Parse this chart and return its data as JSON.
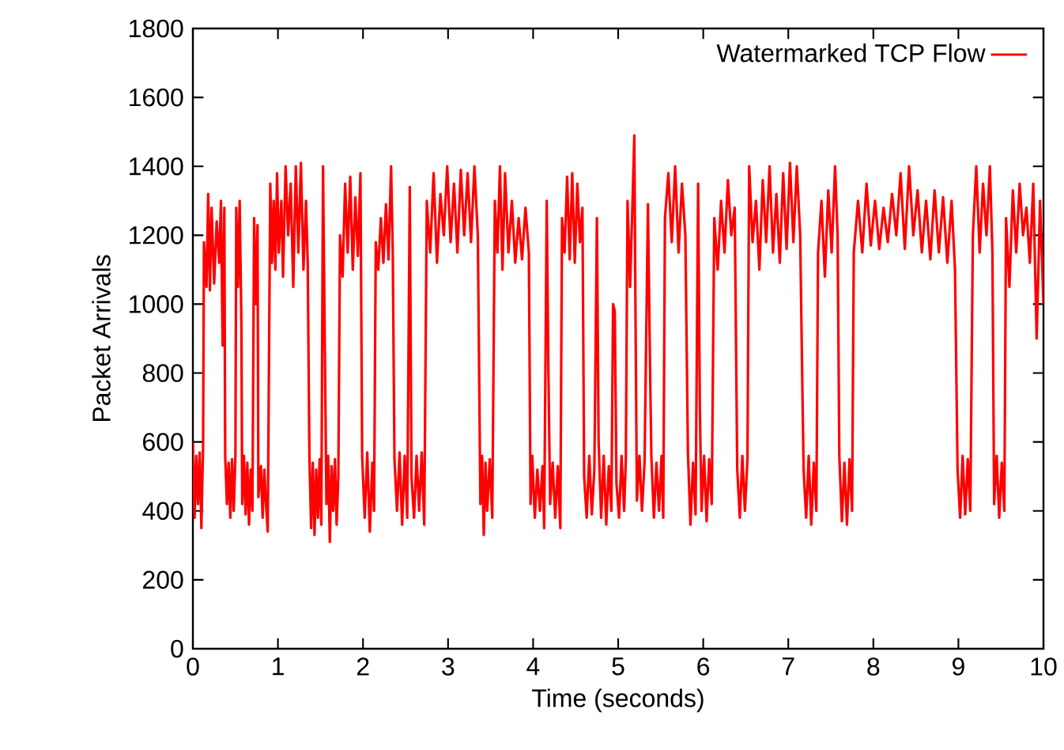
{
  "chart_data": {
    "type": "line",
    "xlabel": "Time (seconds)",
    "ylabel": "Packet Arrivals",
    "xlim": [
      0,
      10
    ],
    "ylim": [
      0,
      1800
    ],
    "xticks": [
      0,
      1,
      2,
      3,
      4,
      5,
      6,
      7,
      8,
      9,
      10
    ],
    "yticks": [
      0,
      200,
      400,
      600,
      800,
      1000,
      1200,
      1400,
      1600,
      1800
    ],
    "legend": "top right",
    "line_style": "solid",
    "x": [
      0,
      0.02,
      0.04,
      0.06,
      0.08,
      0.1,
      0.12,
      0.13,
      0.16,
      0.18,
      0.2,
      0.22,
      0.25,
      0.28,
      0.31,
      0.33,
      0.35,
      0.37,
      0.38,
      0.4,
      0.42,
      0.44,
      0.46,
      0.48,
      0.5,
      0.51,
      0.53,
      0.55,
      0.57,
      0.58,
      0.6,
      0.62,
      0.64,
      0.66,
      0.68,
      0.7,
      0.72,
      0.74,
      0.76,
      0.77,
      0.8,
      0.82,
      0.84,
      0.86,
      0.88,
      0.91,
      0.93,
      0.95,
      0.97,
      0.99,
      1.01,
      1.04,
      1.06,
      1.09,
      1.12,
      1.15,
      1.18,
      1.21,
      1.24,
      1.27,
      1.3,
      1.33,
      1.35,
      1.37,
      1.39,
      1.41,
      1.43,
      1.45,
      1.47,
      1.49,
      1.51,
      1.53,
      1.55,
      1.57,
      1.59,
      1.61,
      1.63,
      1.65,
      1.67,
      1.69,
      1.71,
      1.73,
      1.76,
      1.79,
      1.82,
      1.85,
      1.88,
      1.91,
      1.94,
      1.97,
      1.99,
      2.02,
      2.05,
      2.08,
      2.11,
      2.13,
      2.15,
      2.18,
      2.21,
      2.24,
      2.27,
      2.3,
      2.33,
      2.35,
      2.37,
      2.4,
      2.43,
      2.46,
      2.49,
      2.52,
      2.55,
      2.57,
      2.6,
      2.63,
      2.66,
      2.69,
      2.72,
      2.75,
      2.79,
      2.83,
      2.87,
      2.91,
      2.95,
      2.99,
      3.03,
      3.07,
      3.11,
      3.15,
      3.19,
      3.23,
      3.27,
      3.31,
      3.35,
      3.38,
      3.4,
      3.42,
      3.44,
      3.46,
      3.49,
      3.52,
      3.55,
      3.58,
      3.61,
      3.64,
      3.67,
      3.71,
      3.75,
      3.79,
      3.83,
      3.87,
      3.91,
      3.95,
      3.97,
      3.99,
      4.02,
      4.05,
      4.08,
      4.11,
      4.13,
      4.16,
      4.18,
      4.2,
      4.23,
      4.26,
      4.29,
      4.32,
      4.34,
      4.37,
      4.4,
      4.43,
      4.46,
      4.49,
      4.52,
      4.55,
      4.58,
      4.6,
      4.63,
      4.66,
      4.69,
      4.72,
      4.75,
      4.77,
      4.8,
      4.83,
      4.86,
      4.89,
      4.92,
      4.94,
      4.96,
      4.98,
      5.01,
      5.04,
      5.07,
      5.09,
      5.11,
      5.14,
      5.17,
      5.19,
      5.2,
      5.22,
      5.25,
      5.28,
      5.31,
      5.35,
      5.37,
      5.39,
      5.42,
      5.45,
      5.48,
      5.51,
      5.53,
      5.55,
      5.59,
      5.63,
      5.67,
      5.71,
      5.75,
      5.79,
      5.82,
      5.85,
      5.88,
      5.91,
      5.94,
      5.96,
      5.98,
      6.01,
      6.04,
      6.07,
      6.1,
      6.13,
      6.17,
      6.21,
      6.25,
      6.29,
      6.33,
      6.37,
      6.4,
      6.43,
      6.46,
      6.49,
      6.52,
      6.54,
      6.58,
      6.62,
      6.66,
      6.7,
      6.74,
      6.78,
      6.82,
      6.86,
      6.9,
      6.94,
      6.98,
      7.02,
      7.06,
      7.1,
      7.14,
      7.16,
      7.18,
      7.21,
      7.24,
      7.27,
      7.3,
      7.33,
      7.35,
      7.39,
      7.43,
      7.47,
      7.51,
      7.55,
      7.58,
      7.6,
      7.63,
      7.66,
      7.69,
      7.72,
      7.75,
      7.77,
      7.82,
      7.87,
      7.92,
      7.97,
      8.02,
      8.07,
      8.12,
      8.17,
      8.22,
      8.27,
      8.32,
      8.37,
      8.42,
      8.47,
      8.52,
      8.57,
      8.62,
      8.67,
      8.72,
      8.77,
      8.82,
      8.87,
      8.92,
      8.96,
      8.99,
      9.02,
      9.05,
      9.08,
      9.11,
      9.14,
      9.17,
      9.21,
      9.25,
      9.29,
      9.33,
      9.37,
      9.4,
      9.42,
      9.45,
      9.48,
      9.51,
      9.54,
      9.56,
      9.6,
      9.64,
      9.68,
      9.72,
      9.76,
      9.8,
      9.84,
      9.88,
      9.92,
      9.96,
      10.0
    ],
    "series": [
      {
        "name": "Watermarked TCP Flow",
        "color": "#ff0000",
        "values": [
          600,
          380,
          560,
          420,
          570,
          350,
          590,
          1180,
          1050,
          1320,
          1040,
          1280,
          1060,
          1240,
          1120,
          1300,
          880,
          1280,
          560,
          420,
          540,
          380,
          550,
          400,
          560,
          1280,
          1050,
          1300,
          950,
          420,
          560,
          390,
          540,
          360,
          520,
          400,
          1250,
          1000,
          1230,
          440,
          530,
          380,
          520,
          420,
          340,
          1350,
          1120,
          1300,
          1100,
          1380,
          1150,
          1300,
          1080,
          1400,
          1200,
          1350,
          1050,
          1400,
          1150,
          1410,
          1100,
          1300,
          1120,
          560,
          350,
          540,
          330,
          520,
          380,
          550,
          360,
          1400,
          900,
          420,
          560,
          310,
          530,
          400,
          550,
          360,
          500,
          1200,
          1080,
          1350,
          1150,
          1370,
          1100,
          1310,
          1140,
          1380,
          560,
          380,
          570,
          340,
          540,
          400,
          1180,
          1100,
          1250,
          1120,
          1290,
          1130,
          1400,
          1150,
          550,
          400,
          570,
          360,
          560,
          380,
          1340,
          500,
          380,
          560,
          400,
          570,
          360,
          1300,
          1150,
          1380,
          1120,
          1320,
          1200,
          1400,
          1180,
          1350,
          1150,
          1390,
          1200,
          1380,
          1180,
          1400,
          1200,
          420,
          560,
          330,
          540,
          400,
          550,
          380,
          1300,
          1150,
          1400,
          1100,
          1380,
          1150,
          1300,
          1120,
          1250,
          1130,
          1280,
          1150,
          420,
          560,
          380,
          520,
          400,
          530,
          350,
          1300,
          800,
          420,
          540,
          380,
          530,
          350,
          1250,
          1150,
          1370,
          1130,
          1380,
          1120,
          1350,
          1180,
          1280,
          500,
          380,
          560,
          390,
          520,
          1250,
          600,
          380,
          560,
          360,
          530,
          400,
          1000,
          980,
          480,
          380,
          560,
          400,
          550,
          1300,
          1050,
          1310,
          1490,
          1100,
          430,
          560,
          400,
          540,
          1290,
          900,
          560,
          380,
          540,
          400,
          560,
          380,
          1250,
          1380,
          1180,
          1400,
          1150,
          1350,
          1200,
          570,
          360,
          540,
          390,
          1350,
          700,
          400,
          560,
          370,
          550,
          420,
          1250,
          1100,
          1300,
          1150,
          1360,
          1200,
          1280,
          520,
          380,
          560,
          400,
          550,
          1400,
          1180,
          1300,
          1100,
          1360,
          1180,
          1400,
          1150,
          1320,
          1120,
          1380,
          1160,
          1410,
          1180,
          1400,
          1200,
          850,
          520,
          380,
          560,
          360,
          540,
          400,
          1150,
          1300,
          1080,
          1330,
          1150,
          1400,
          1200,
          560,
          370,
          540,
          360,
          550,
          400,
          1150,
          1300,
          1150,
          1350,
          1170,
          1300,
          1160,
          1280,
          1180,
          1320,
          1200,
          1380,
          1160,
          1400,
          1200,
          1330,
          1150,
          1300,
          1130,
          1330,
          1150,
          1310,
          1120,
          1300,
          1100,
          520,
          380,
          560,
          390,
          550,
          400,
          1200,
          1400,
          1150,
          1350,
          1200,
          1400,
          1150,
          420,
          560,
          380,
          540,
          400,
          1250,
          1050,
          1330,
          1150,
          1350,
          1200,
          1280,
          1120,
          1350,
          900,
          1300,
          1000
        ]
      }
    ]
  }
}
